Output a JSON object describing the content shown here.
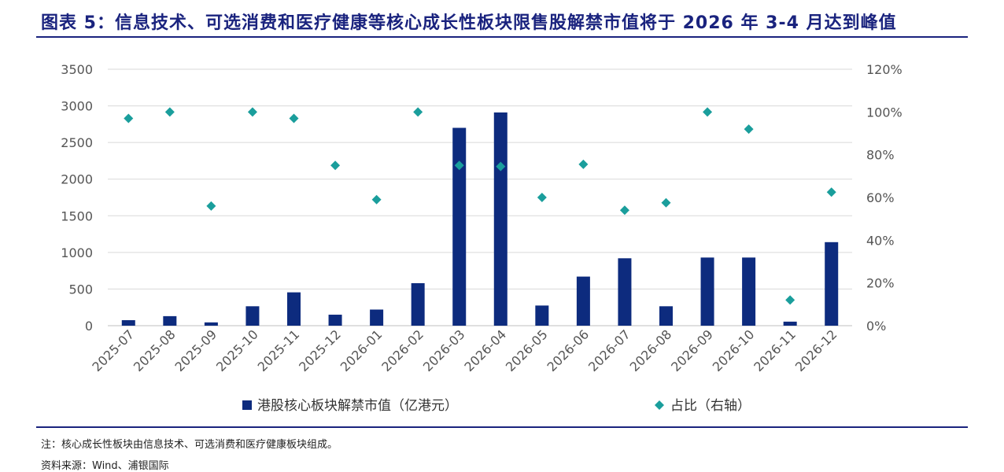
{
  "title": "图表 5：信息技术、可选消费和医疗健康等核心成长性板块限售股解禁市值将于 2026 年 3-4 月达到峰值",
  "notes": {
    "note": "注：核心成长性板块由信息技术、可选消费和医疗健康板块组成。",
    "source": "资料来源：Wind、浦银国际"
  },
  "colors": {
    "bar": "#0d2b7e",
    "marker": "#1a9e9c",
    "title": "#1a237e",
    "grid": "#d9d9d9"
  },
  "chart_data": {
    "type": "bar",
    "categories": [
      "2025-07",
      "2025-08",
      "2025-09",
      "2025-10",
      "2025-11",
      "2025-12",
      "2026-01",
      "2026-02",
      "2026-03",
      "2026-04",
      "2026-05",
      "2026-06",
      "2026-07",
      "2026-08",
      "2026-09",
      "2026-10",
      "2026-11",
      "2026-12"
    ],
    "series": [
      {
        "name": "港股核心板块解禁市值（亿港元）",
        "type": "bar",
        "axis": "left",
        "values": [
          75,
          130,
          45,
          265,
          455,
          150,
          220,
          580,
          2700,
          2910,
          275,
          670,
          920,
          265,
          930,
          930,
          55,
          1140
        ]
      },
      {
        "name": "占比（右轴）",
        "type": "scatter",
        "marker": "diamond",
        "axis": "right",
        "values": [
          97,
          100,
          56,
          100,
          97,
          75,
          59,
          100,
          75,
          74.5,
          60,
          75.5,
          54,
          57.5,
          100,
          92,
          12,
          62.5
        ]
      }
    ],
    "y_left": {
      "min": 0,
      "max": 3500,
      "ticks": [
        "0",
        "500",
        "1000",
        "1500",
        "2000",
        "2500",
        "3000",
        "3500"
      ]
    },
    "y_right": {
      "min": 0,
      "max": 120,
      "ticks": [
        "0%",
        "20%",
        "40%",
        "60%",
        "80%",
        "100%",
        "120%"
      ]
    },
    "grid": true,
    "legend_position": "bottom"
  }
}
